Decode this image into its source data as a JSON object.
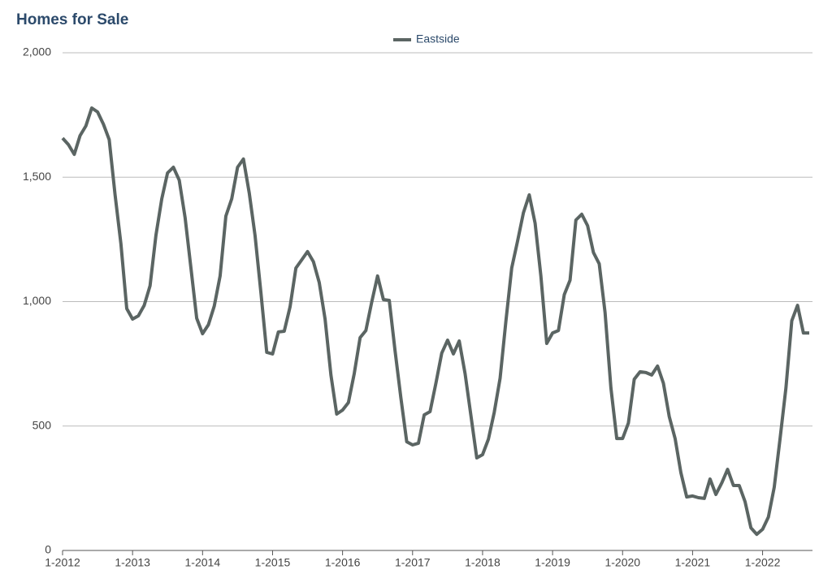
{
  "chart_data": {
    "type": "line",
    "title": "Homes for Sale",
    "categories": [
      "1-2012",
      null,
      null,
      null,
      null,
      null,
      null,
      null,
      null,
      null,
      null,
      null,
      "1-2013",
      null,
      null,
      null,
      null,
      null,
      null,
      null,
      null,
      null,
      null,
      null,
      "1-2014",
      null,
      null,
      null,
      null,
      null,
      null,
      null,
      null,
      null,
      null,
      null,
      "1-2015",
      null,
      null,
      null,
      null,
      null,
      null,
      null,
      null,
      null,
      null,
      null,
      "1-2016",
      null,
      null,
      null,
      null,
      null,
      null,
      null,
      null,
      null,
      null,
      null,
      "1-2017",
      null,
      null,
      null,
      null,
      null,
      null,
      null,
      null,
      null,
      null,
      null,
      "1-2018",
      null,
      null,
      null,
      null,
      null,
      null,
      null,
      null,
      null,
      null,
      null,
      "1-2019",
      null,
      null,
      null,
      null,
      null,
      null,
      null,
      null,
      null,
      null,
      null,
      "1-2020",
      null,
      null,
      null,
      null,
      null,
      null,
      null,
      null,
      null,
      null,
      null,
      "1-2021",
      null,
      null,
      null,
      null,
      null,
      null,
      null,
      null,
      null,
      null,
      null,
      "1-2022",
      null,
      null,
      null,
      null,
      null,
      null,
      null,
      null
    ],
    "series": [
      {
        "name": "Eastside",
        "color": "#5b6563",
        "values": [
          1657,
          1631,
          1592,
          1667,
          1706,
          1778,
          1762,
          1713,
          1651,
          1430,
          1233,
          972,
          930,
          943,
          985,
          1064,
          1266,
          1413,
          1517,
          1540,
          1488,
          1338,
          1135,
          933,
          871,
          907,
          982,
          1103,
          1344,
          1413,
          1540,
          1573,
          1436,
          1266,
          1037,
          796,
          790,
          878,
          881,
          979,
          1135,
          1168,
          1201,
          1161,
          1077,
          930,
          705,
          548,
          564,
          594,
          711,
          855,
          884,
          998,
          1103,
          1008,
          1005,
          803,
          613,
          437,
          424,
          431,
          545,
          558,
          672,
          793,
          845,
          790,
          842,
          711,
          542,
          372,
          385,
          447,
          555,
          692,
          923,
          1135,
          1243,
          1357,
          1429,
          1315,
          1103,
          832,
          874,
          884,
          1028,
          1086,
          1328,
          1351,
          1305,
          1197,
          1152,
          956,
          653,
          450,
          450,
          512,
          688,
          718,
          715,
          705,
          741,
          672,
          538,
          450,
          313,
          215,
          219,
          212,
          209,
          287,
          225,
          271,
          326,
          261,
          261,
          196,
          91,
          65,
          85,
          134,
          254,
          450,
          653,
          923,
          985,
          874,
          874
        ]
      }
    ],
    "ylim": [
      0,
      2000
    ],
    "yticks": [
      0,
      {
        "value": 500,
        "label": "500"
      },
      {
        "value": 1000,
        "label": "1,000"
      },
      {
        "value": 1500,
        "label": "1,500"
      },
      {
        "value": 2000,
        "label": "2,000"
      }
    ],
    "grid": true,
    "legend": "top"
  }
}
